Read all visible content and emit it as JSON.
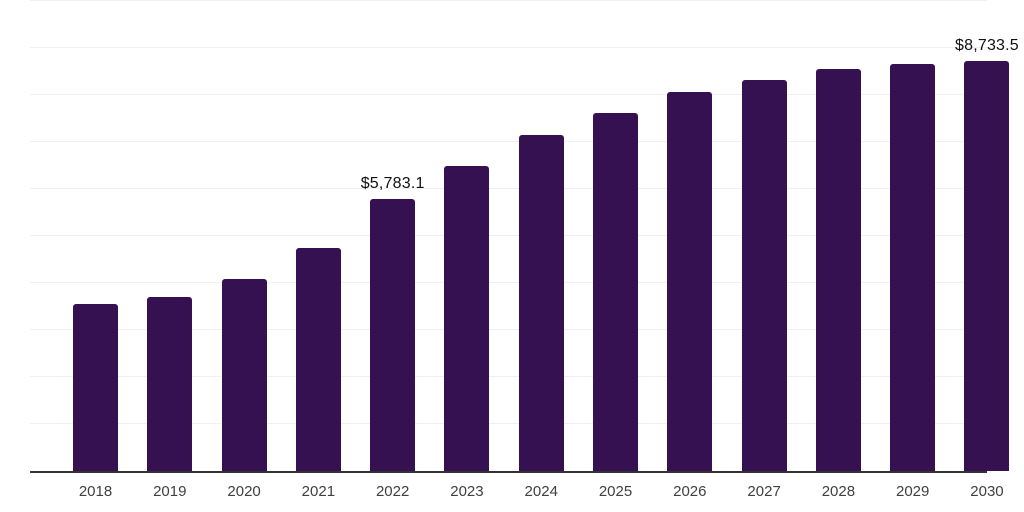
{
  "colors": {
    "background": "#ffffff",
    "bar": "#351152",
    "grid": "#f0f0f2",
    "axis": "#333333",
    "tick_label": "#404040",
    "data_label": "#111111"
  },
  "chart_data": {
    "type": "bar",
    "categories": [
      "2018",
      "2019",
      "2020",
      "2021",
      "2022",
      "2023",
      "2024",
      "2025",
      "2026",
      "2027",
      "2028",
      "2029",
      "2030"
    ],
    "values": [
      3560,
      3710,
      4090,
      4750,
      5783.1,
      6480,
      7150,
      7620,
      8060,
      8320,
      8560,
      8670,
      8733.5
    ],
    "annotations": [
      {
        "category": "2022",
        "text": "$5,783.1"
      },
      {
        "category": "2030",
        "text": "$8,733.5"
      }
    ],
    "ylim": [
      0,
      10000
    ],
    "gridline_step": 1000,
    "grid": true,
    "legend": false,
    "y_axis_labels_visible": false
  }
}
